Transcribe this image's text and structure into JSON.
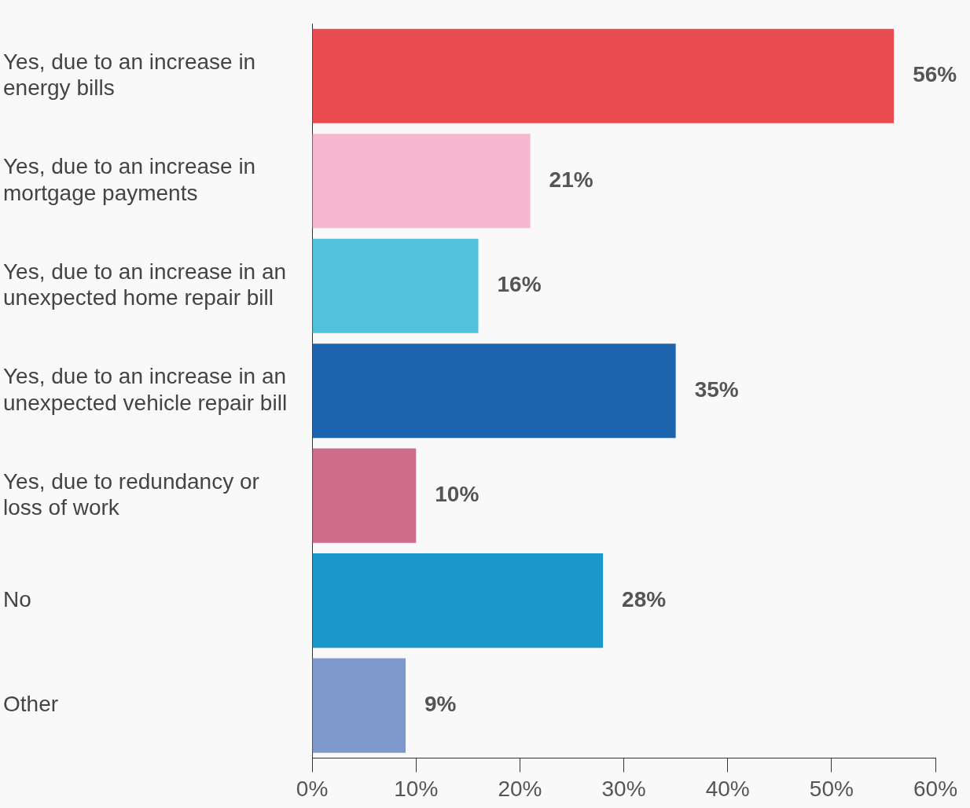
{
  "chart_data": {
    "type": "bar",
    "orientation": "horizontal",
    "categories": [
      "Yes, due to an increase in energy bills",
      "Yes, due to an increase in mortgage payments",
      "Yes, due to an increase in an unexpected home repair bill",
      "Yes, due to an increase in an unexpected vehicle repair bill",
      "Yes, due to redundancy or loss of work",
      "No",
      "Other"
    ],
    "values": [
      56,
      21,
      16,
      35,
      10,
      28,
      9
    ],
    "colors": [
      "#e84c50",
      "#f6b8d0",
      "#52c1db",
      "#1c64ae",
      "#cf6b8b",
      "#1b98cb",
      "#7f98cc"
    ],
    "value_labels": [
      "56%",
      "21%",
      "16%",
      "35%",
      "10%",
      "28%",
      "9%"
    ],
    "xlim": [
      0,
      60
    ],
    "xticks": [
      {
        "value": 0,
        "label": "0%"
      },
      {
        "value": 10,
        "label": "10%"
      },
      {
        "value": 20,
        "label": "20%"
      },
      {
        "value": 30,
        "label": "30%"
      },
      {
        "value": 40,
        "label": "40%"
      },
      {
        "value": 50,
        "label": "50%"
      },
      {
        "value": 60,
        "label": "60%"
      }
    ],
    "grid": false,
    "legend": false
  }
}
